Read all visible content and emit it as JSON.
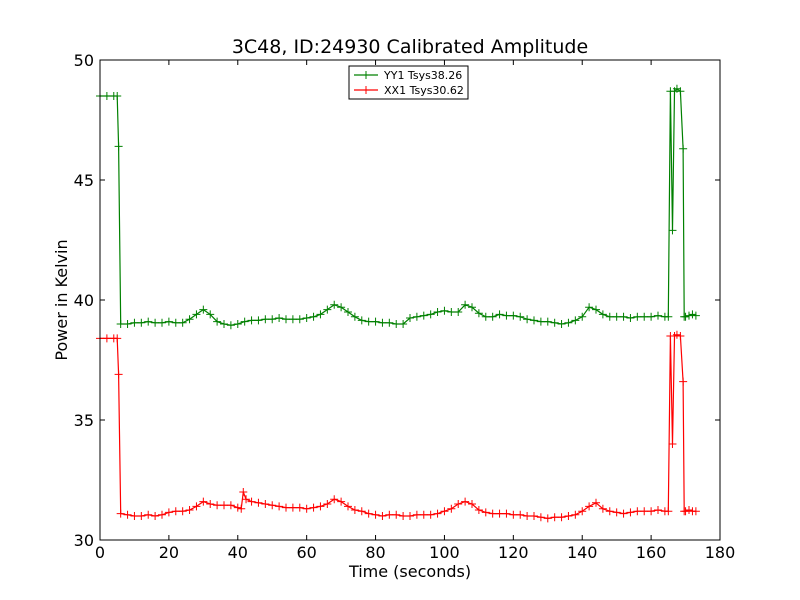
{
  "chart_data": {
    "type": "line",
    "title": "3C48, ID:24930 Calibrated Amplitude",
    "xlabel": "Time (seconds)",
    "ylabel": "Power in Kelvin",
    "xlim": [
      0,
      180
    ],
    "ylim": [
      30,
      50
    ],
    "xticks": [
      0,
      20,
      40,
      60,
      80,
      100,
      120,
      140,
      160,
      180
    ],
    "yticks": [
      30,
      35,
      40,
      45,
      50
    ],
    "grid": false,
    "legend_position": "top-center",
    "marker": "+",
    "series": [
      {
        "name": "YY1 Tsys38.26",
        "color": "#008000",
        "x": [
          0,
          2,
          4,
          5,
          5.4,
          6,
          8,
          10,
          12,
          14,
          16,
          18,
          20,
          22,
          24,
          26,
          28,
          30,
          32,
          34,
          36,
          38,
          40,
          42,
          44,
          46,
          48,
          50,
          52,
          54,
          56,
          58,
          60,
          62,
          64,
          66,
          68,
          70,
          72,
          74,
          76,
          78,
          80,
          82,
          84,
          86,
          88,
          90,
          92,
          94,
          96,
          98,
          100,
          102,
          104,
          106,
          108,
          110,
          112,
          114,
          116,
          118,
          120,
          122,
          124,
          126,
          128,
          130,
          132,
          134,
          136,
          138,
          140,
          142,
          144,
          146,
          148,
          150,
          152,
          154,
          156,
          158,
          160,
          162,
          164,
          165,
          165.6,
          166.2,
          166.8,
          167.5,
          168.5,
          169.3,
          169.6,
          170,
          171,
          172,
          173
        ],
        "y": [
          48.5,
          48.5,
          48.5,
          48.5,
          46.4,
          39.0,
          39.0,
          39.05,
          39.05,
          39.1,
          39.05,
          39.05,
          39.1,
          39.05,
          39.05,
          39.2,
          39.4,
          39.6,
          39.4,
          39.1,
          39.0,
          38.95,
          39.0,
          39.1,
          39.15,
          39.15,
          39.2,
          39.2,
          39.25,
          39.2,
          39.2,
          39.2,
          39.25,
          39.3,
          39.4,
          39.6,
          39.8,
          39.7,
          39.5,
          39.3,
          39.15,
          39.1,
          39.1,
          39.05,
          39.05,
          39.0,
          39.0,
          39.25,
          39.3,
          39.35,
          39.4,
          39.5,
          39.55,
          39.5,
          39.5,
          39.8,
          39.7,
          39.45,
          39.3,
          39.3,
          39.4,
          39.35,
          39.35,
          39.3,
          39.2,
          39.15,
          39.1,
          39.1,
          39.05,
          39.0,
          39.05,
          39.15,
          39.3,
          39.7,
          39.6,
          39.4,
          39.3,
          39.3,
          39.3,
          39.25,
          39.3,
          39.3,
          39.3,
          39.35,
          39.3,
          39.3,
          48.7,
          42.9,
          48.7,
          48.8,
          48.7,
          46.3,
          39.3,
          39.3,
          39.35,
          39.4,
          39.35
        ]
      },
      {
        "name": "XX1 Tsys30.62",
        "color": "#ff0000",
        "x": [
          0,
          2,
          4,
          5,
          5.4,
          6,
          8,
          10,
          12,
          14,
          16,
          18,
          20,
          22,
          24,
          26,
          28,
          30,
          32,
          34,
          36,
          38,
          40,
          41,
          41.6,
          42.4,
          44,
          46,
          48,
          50,
          52,
          54,
          56,
          58,
          60,
          62,
          64,
          66,
          68,
          70,
          72,
          74,
          76,
          78,
          80,
          82,
          84,
          86,
          88,
          90,
          92,
          94,
          96,
          98,
          100,
          102,
          104,
          106,
          108,
          110,
          112,
          114,
          116,
          118,
          120,
          122,
          124,
          126,
          128,
          130,
          132,
          134,
          136,
          138,
          140,
          142,
          144,
          146,
          148,
          150,
          152,
          154,
          156,
          158,
          160,
          162,
          164,
          165,
          165.6,
          166.2,
          166.8,
          167.5,
          168.5,
          169.3,
          169.6,
          170,
          171,
          172,
          173
        ],
        "y": [
          38.4,
          38.4,
          38.4,
          38.4,
          36.9,
          31.1,
          31.05,
          31.0,
          31.0,
          31.05,
          31.0,
          31.05,
          31.15,
          31.2,
          31.2,
          31.25,
          31.4,
          31.6,
          31.5,
          31.45,
          31.45,
          31.45,
          31.35,
          31.3,
          32.0,
          31.7,
          31.6,
          31.55,
          31.5,
          31.45,
          31.4,
          31.35,
          31.35,
          31.35,
          31.3,
          31.35,
          31.4,
          31.5,
          31.7,
          31.6,
          31.4,
          31.25,
          31.2,
          31.1,
          31.05,
          31.0,
          31.05,
          31.05,
          31.0,
          31.0,
          31.05,
          31.05,
          31.05,
          31.1,
          31.2,
          31.3,
          31.5,
          31.6,
          31.5,
          31.25,
          31.15,
          31.1,
          31.1,
          31.1,
          31.05,
          31.05,
          31.0,
          31.0,
          30.95,
          30.9,
          30.95,
          30.95,
          31.0,
          31.05,
          31.2,
          31.4,
          31.55,
          31.3,
          31.2,
          31.15,
          31.1,
          31.15,
          31.2,
          31.2,
          31.2,
          31.25,
          31.2,
          31.2,
          38.5,
          34.0,
          38.5,
          38.55,
          38.5,
          36.6,
          31.2,
          31.2,
          31.25,
          31.2,
          31.2
        ]
      }
    ]
  }
}
